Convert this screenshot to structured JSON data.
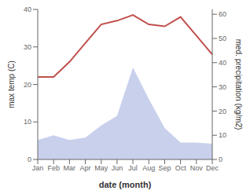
{
  "chart_data": {
    "type": "line",
    "xlabel": "date (month)",
    "ylabel": "max temp (C)",
    "y2label": "med. precipitation (kg/m2)",
    "categories": [
      "Jan",
      "Feb",
      "Mar",
      "Apr",
      "May",
      "Jun",
      "Jul",
      "Aug",
      "Sep",
      "Oct",
      "Nov",
      "Dec"
    ],
    "series": [
      {
        "type": "area",
        "axis": "y2",
        "color": "#c8d0ec",
        "values": [
          8,
          10,
          8,
          9,
          14,
          18,
          38,
          25,
          13,
          7,
          7,
          6.5
        ]
      },
      {
        "type": "line",
        "color": "#c0504d",
        "values": [
          22,
          22,
          26,
          31,
          36,
          37,
          38.5,
          36,
          35.5,
          38,
          33,
          28
        ]
      }
    ],
    "ylim": [
      0,
      40
    ],
    "yticks": [
      0,
      10,
      20,
      30,
      40
    ],
    "y2lim": [
      0,
      62
    ],
    "y2ticks": [
      0,
      10,
      20,
      30,
      40,
      50,
      60
    ],
    "grid": false
  }
}
